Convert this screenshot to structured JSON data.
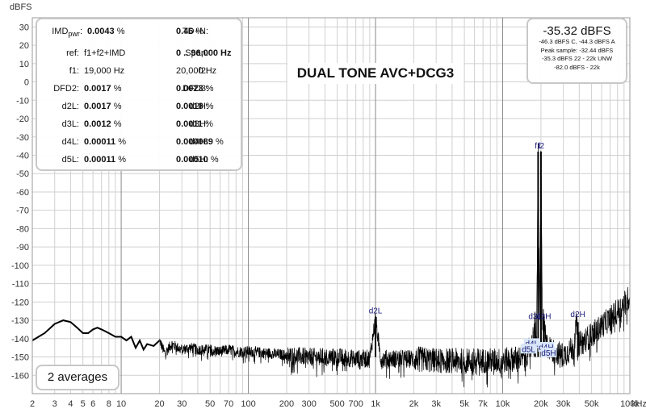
{
  "chart_data": {
    "type": "line",
    "title": "DUAL TONE AVC+DCG3",
    "ylabel": "dBFS",
    "xlabel": "",
    "x_unit": "kHz",
    "x_scale": "log",
    "xlim": [
      2,
      100000
    ],
    "ylim": [
      -170,
      35
    ],
    "grid": true,
    "y_ticks": [
      30,
      20,
      10,
      0,
      -10,
      -20,
      -30,
      -40,
      -50,
      -60,
      -70,
      -80,
      -90,
      -100,
      -110,
      -120,
      -130,
      -140,
      -150,
      -160
    ],
    "x_ticks": [
      {
        "v": 2,
        "t": "2"
      },
      {
        "v": 3,
        "t": "3"
      },
      {
        "v": 4,
        "t": "4"
      },
      {
        "v": 5,
        "t": "5"
      },
      {
        "v": 6,
        "t": "6"
      },
      {
        "v": 8,
        "t": "8"
      },
      {
        "v": 10,
        "t": "10"
      },
      {
        "v": 20,
        "t": "20"
      },
      {
        "v": 30,
        "t": "30"
      },
      {
        "v": 50,
        "t": "50"
      },
      {
        "v": 70,
        "t": "70"
      },
      {
        "v": 100,
        "t": "100"
      },
      {
        "v": 200,
        "t": "200"
      },
      {
        "v": 300,
        "t": "300"
      },
      {
        "v": 500,
        "t": "500"
      },
      {
        "v": 700,
        "t": "700"
      },
      {
        "v": 1000,
        "t": "1k"
      },
      {
        "v": 2000,
        "t": "2k"
      },
      {
        "v": 3000,
        "t": "3k"
      },
      {
        "v": 5000,
        "t": "5k"
      },
      {
        "v": 7000,
        "t": "7k"
      },
      {
        "v": 10000,
        "t": "10k"
      },
      {
        "v": 20000,
        "t": "20k"
      },
      {
        "v": 30000,
        "t": "30k"
      },
      {
        "v": 50000,
        "t": "50k"
      },
      {
        "v": 100000,
        "t": "100k"
      }
    ],
    "series": [
      {
        "values": [
          [
            2,
            -141
          ],
          [
            2.5,
            -137
          ],
          [
            3,
            -132
          ],
          [
            3.5,
            -130
          ],
          [
            4,
            -131
          ],
          [
            4.5,
            -134
          ],
          [
            5,
            -137
          ],
          [
            5.5,
            -137
          ],
          [
            6,
            -135
          ],
          [
            6.5,
            -134
          ],
          [
            7,
            -135
          ],
          [
            8,
            -137
          ],
          [
            9,
            -139
          ],
          [
            10,
            -139
          ],
          [
            11,
            -141
          ],
          [
            12,
            -139
          ],
          [
            13,
            -145
          ],
          [
            14,
            -141
          ],
          [
            15,
            -146
          ],
          [
            16,
            -143
          ],
          [
            18,
            -144
          ],
          [
            20,
            -141
          ],
          [
            22,
            -148
          ],
          [
            25,
            -143
          ],
          [
            28,
            -145
          ],
          [
            30,
            -146
          ],
          [
            35,
            -145
          ],
          [
            40,
            -146
          ],
          [
            50,
            -146
          ],
          [
            60,
            -147
          ],
          [
            70,
            -146
          ],
          [
            80,
            -147
          ],
          [
            100,
            -147
          ],
          [
            150,
            -148
          ],
          [
            200,
            -149
          ],
          [
            300,
            -150
          ],
          [
            500,
            -150
          ],
          [
            700,
            -151
          ],
          [
            900,
            -151
          ],
          [
            1000,
            -129
          ],
          [
            1100,
            -151
          ],
          [
            2000,
            -151
          ],
          [
            3000,
            -152
          ],
          [
            5000,
            -152
          ],
          [
            7000,
            -152
          ],
          [
            10000,
            -152
          ],
          [
            15000,
            -150
          ],
          [
            17000,
            -143
          ],
          [
            18000,
            -131
          ],
          [
            18500,
            -140
          ],
          [
            19000,
            -38
          ],
          [
            19500,
            -128
          ],
          [
            20000,
            -38
          ],
          [
            20500,
            -129
          ],
          [
            21000,
            -131
          ],
          [
            22000,
            -143
          ],
          [
            25000,
            -147
          ],
          [
            30000,
            -149
          ],
          [
            36000,
            -145
          ],
          [
            38000,
            -132
          ],
          [
            40000,
            -143
          ],
          [
            50000,
            -138
          ],
          [
            60000,
            -133
          ],
          [
            70000,
            -129
          ],
          [
            80000,
            -125
          ],
          [
            90000,
            -121
          ],
          [
            100000,
            -117
          ]
        ]
      }
    ],
    "peak_labels": [
      {
        "text": "d2L",
        "x": 1000,
        "y": -128
      },
      {
        "text": "f1",
        "x": 19000,
        "y": -38
      },
      {
        "text": "f2",
        "x": 20000,
        "y": -38
      },
      {
        "text": "d3L",
        "x": 18000,
        "y": -131
      },
      {
        "text": "d3H",
        "x": 21000,
        "y": -131
      },
      {
        "text": "d2H",
        "x": 39000,
        "y": -130
      },
      {
        "text": "d4L",
        "x": 17000,
        "y": -146
      },
      {
        "text": "d5L",
        "x": 16000,
        "y": -149
      },
      {
        "text": "d4H",
        "x": 22000,
        "y": -148
      },
      {
        "text": "d5H",
        "x": 23000,
        "y": -151
      }
    ]
  },
  "stats": {
    "imd_label": "IMD",
    "imd_sub": "pwr",
    "imd_value": "0.0043",
    "tdn_label": "TD+N:",
    "tdn_value": "0.46",
    "pct": "%",
    "ref_label": "ref:",
    "ref_value": "f1+f2+IMD",
    "span_label": "Span:",
    "span_value": "0 .. 96,000 Hz",
    "f1_label": "f1:",
    "f1_value": "19,000 Hz",
    "f2_label": "f2:",
    "f2_value": "20,000 Hz",
    "dfd2_label": "DFD2:",
    "dfd2_value": "0.0017",
    "dfd3_label": "DFD3:",
    "dfd3_value": "0.0023",
    "d2l_label": "d2L:",
    "d2l_value": "0.0017",
    "d2h_label": "d2H:",
    "d2h_value": "0.0018",
    "d3l_label": "d3L:",
    "d3l_value": "0.0012",
    "d3h_label": "d3H:",
    "d3h_value": "0.0011",
    "d4l_label": "d4L:",
    "d4l_value": "0.00011",
    "d4h_label": "d4H:",
    "d4h_value": "0.000089",
    "d5l_label": "d5L:",
    "d5l_value": "0.00011",
    "d5h_label": "d5H:",
    "d5h_value": "0.00010"
  },
  "level": {
    "main": "-35.32 dBFS",
    "line1": "-46.3 dBFS C, -44.3 dBFS A",
    "line2": "Peak sample: -32.44 dBFS",
    "line3": "-35.3 dBFS 22 - 22k UNW",
    "line4": "-82.0 dBFS - 22k"
  },
  "averages": "2 averages",
  "colors": {
    "trace": "#000000",
    "peak_label": "#1a1a7a",
    "grid": "#d0d0d0",
    "grid_major": "#8a8a8a",
    "marker_bg": "#d8e6f8"
  }
}
